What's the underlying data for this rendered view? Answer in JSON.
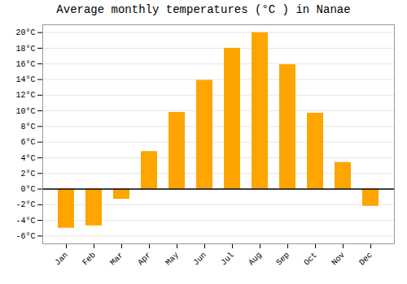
{
  "chart_data": {
    "type": "bar",
    "title": "Average monthly temperatures (°C ) in Nanae",
    "categories": [
      "Jan",
      "Feb",
      "Mar",
      "Apr",
      "May",
      "Jun",
      "Jul",
      "Aug",
      "Sep",
      "Oct",
      "Nov",
      "Dec"
    ],
    "values": [
      -5.0,
      -4.7,
      -1.3,
      4.8,
      9.8,
      13.9,
      18.0,
      20.0,
      15.9,
      9.7,
      3.4,
      -2.2
    ],
    "color": "#FFA500",
    "ylim": [
      -7,
      21
    ],
    "yticks": [
      {
        "value": -6,
        "label": "-6°C"
      },
      {
        "value": -4,
        "label": "-4°C"
      },
      {
        "value": -2,
        "label": "-2°C"
      },
      {
        "value": 0,
        "label": "0°C"
      },
      {
        "value": 2,
        "label": "2°C"
      },
      {
        "value": 4,
        "label": "4°C"
      },
      {
        "value": 6,
        "label": "6°C"
      },
      {
        "value": 8,
        "label": "8°C"
      },
      {
        "value": 10,
        "label": "10°C"
      },
      {
        "value": 12,
        "label": "12°C"
      },
      {
        "value": 14,
        "label": "14°C"
      },
      {
        "value": 16,
        "label": "16°C"
      },
      {
        "value": 18,
        "label": "18°C"
      },
      {
        "value": 20,
        "label": "20°C"
      }
    ],
    "grid": true
  }
}
